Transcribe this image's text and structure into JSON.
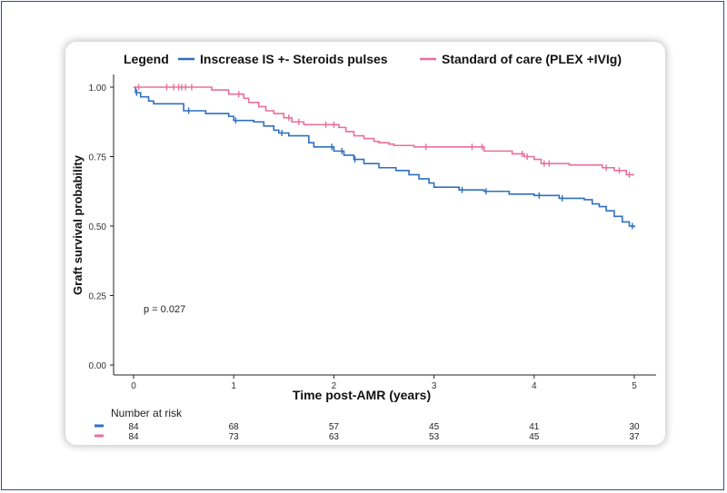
{
  "colors": {
    "series_blue": "#2f6fc0",
    "series_pink": "#ea6f9a",
    "frame": "#2f4b8f"
  },
  "legend": {
    "title": "Legend",
    "items": [
      {
        "label": "Inscrease IS +- Steroids pulses",
        "color": "#2f6fc0"
      },
      {
        "label": "Standard of care (PLEX +IVIg)",
        "color": "#ea6f9a"
      }
    ]
  },
  "annotation": "p = 0.027",
  "risk_table": {
    "title": "Number at risk",
    "rows": [
      {
        "color": "#2f6fc0",
        "values": [
          "84",
          "68",
          "57",
          "45",
          "41",
          "30"
        ]
      },
      {
        "color": "#ea6f9a",
        "values": [
          "84",
          "73",
          "63",
          "53",
          "45",
          "37"
        ]
      }
    ]
  },
  "chart_data": {
    "type": "line",
    "step": true,
    "xlabel": "Time post-AMR (years)",
    "ylabel": "Graft survival probability",
    "xlim": [
      0,
      5
    ],
    "ylim": [
      0,
      1
    ],
    "x_ticks": [
      "0",
      "1",
      "2",
      "3",
      "4",
      "5"
    ],
    "y_ticks": [
      "0.00",
      "0.25",
      "0.50",
      "0.75",
      "1.00"
    ],
    "grid": false,
    "legend_position": "top",
    "series": [
      {
        "name": "Inscrease IS +- Steroids pulses",
        "color": "#2f6fc0",
        "points": [
          [
            0,
            1.0
          ],
          [
            0.02,
            0.98
          ],
          [
            0.07,
            0.965
          ],
          [
            0.15,
            0.95
          ],
          [
            0.2,
            0.94
          ],
          [
            0.5,
            0.915
          ],
          [
            0.72,
            0.905
          ],
          [
            0.95,
            0.895
          ],
          [
            1.0,
            0.88
          ],
          [
            1.2,
            0.875
          ],
          [
            1.3,
            0.86
          ],
          [
            1.4,
            0.845
          ],
          [
            1.45,
            0.835
          ],
          [
            1.55,
            0.825
          ],
          [
            1.75,
            0.8
          ],
          [
            1.8,
            0.785
          ],
          [
            2.0,
            0.77
          ],
          [
            2.1,
            0.755
          ],
          [
            2.2,
            0.74
          ],
          [
            2.3,
            0.725
          ],
          [
            2.45,
            0.71
          ],
          [
            2.62,
            0.7
          ],
          [
            2.75,
            0.685
          ],
          [
            2.85,
            0.67
          ],
          [
            2.95,
            0.655
          ],
          [
            3.0,
            0.64
          ],
          [
            3.25,
            0.63
          ],
          [
            3.5,
            0.625
          ],
          [
            3.75,
            0.615
          ],
          [
            4.0,
            0.61
          ],
          [
            4.25,
            0.6
          ],
          [
            4.5,
            0.595
          ],
          [
            4.58,
            0.58
          ],
          [
            4.65,
            0.57
          ],
          [
            4.72,
            0.555
          ],
          [
            4.8,
            0.535
          ],
          [
            4.88,
            0.515
          ],
          [
            4.95,
            0.5
          ],
          [
            5.0,
            0.495
          ]
        ],
        "censored_x": [
          0.03,
          0.55,
          1.02,
          1.48,
          1.98,
          2.08,
          2.21,
          3.28,
          3.52,
          4.05,
          4.28,
          4.98
        ]
      },
      {
        "name": "Standard of care (PLEX +IVIg)",
        "color": "#ea6f9a",
        "points": [
          [
            0,
            1.0
          ],
          [
            0.78,
            0.99
          ],
          [
            0.95,
            0.975
          ],
          [
            1.1,
            0.96
          ],
          [
            1.15,
            0.945
          ],
          [
            1.25,
            0.93
          ],
          [
            1.32,
            0.915
          ],
          [
            1.4,
            0.905
          ],
          [
            1.5,
            0.89
          ],
          [
            1.58,
            0.875
          ],
          [
            1.7,
            0.865
          ],
          [
            2.05,
            0.855
          ],
          [
            2.12,
            0.84
          ],
          [
            2.2,
            0.825
          ],
          [
            2.3,
            0.815
          ],
          [
            2.4,
            0.805
          ],
          [
            2.45,
            0.8
          ],
          [
            2.55,
            0.795
          ],
          [
            2.6,
            0.79
          ],
          [
            2.8,
            0.785
          ],
          [
            3.12,
            0.785
          ],
          [
            3.5,
            0.77
          ],
          [
            3.78,
            0.76
          ],
          [
            3.9,
            0.75
          ],
          [
            4.0,
            0.74
          ],
          [
            4.07,
            0.725
          ],
          [
            4.35,
            0.72
          ],
          [
            4.68,
            0.71
          ],
          [
            4.8,
            0.7
          ],
          [
            4.92,
            0.685
          ],
          [
            5.0,
            0.685
          ]
        ],
        "censored_x": [
          0.05,
          0.33,
          0.4,
          0.45,
          0.48,
          0.52,
          0.58,
          1.05,
          1.55,
          1.65,
          1.92,
          2.0,
          2.92,
          3.38,
          3.48,
          3.88,
          3.93,
          4.1,
          4.15,
          4.72,
          4.85,
          4.95
        ]
      }
    ]
  }
}
